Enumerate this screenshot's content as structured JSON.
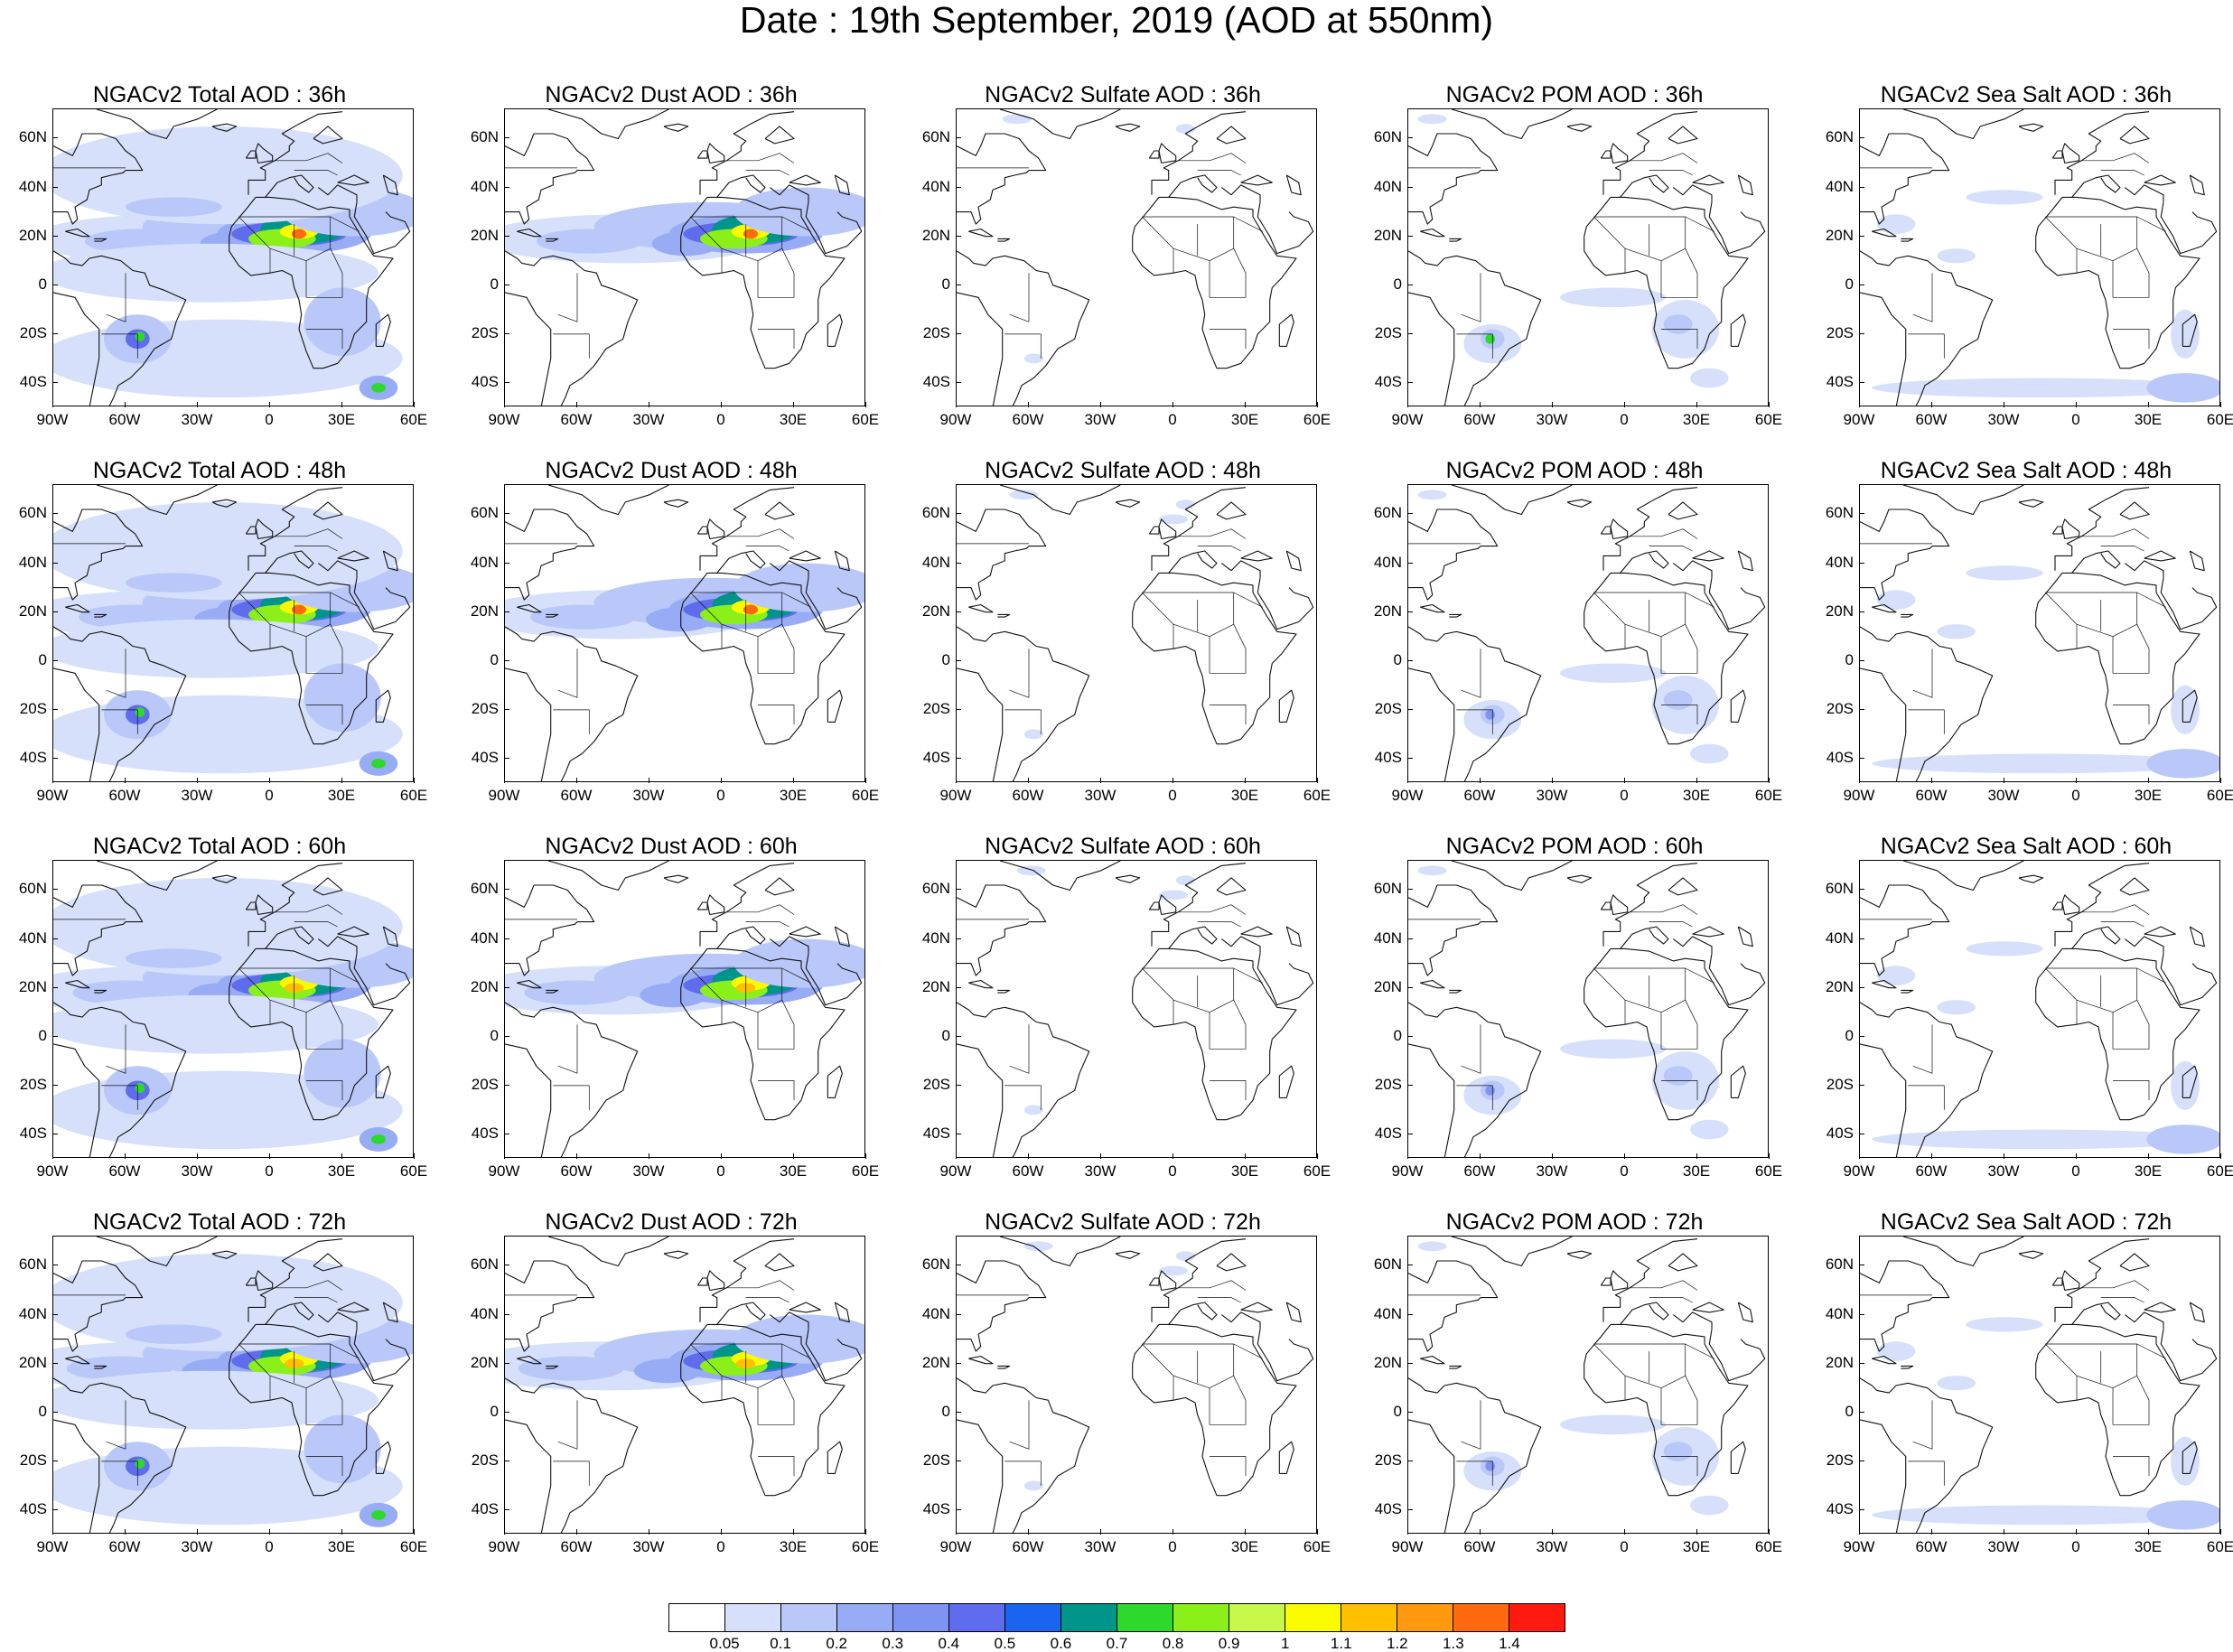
{
  "title": "Date : 19th September, 2019 (AOD at 550nm)",
  "lat_labels": [
    "60N",
    "40N",
    "20N",
    "0",
    "20S",
    "40S"
  ],
  "lon_labels": [
    "90W",
    "60W",
    "30W",
    "0",
    "30E",
    "60E"
  ],
  "rows": [
    {
      "forecast_hour": "36h",
      "panels": [
        {
          "title": "NGACv2 Total AOD : 36h",
          "species": "total"
        },
        {
          "title": "NGACv2 Dust AOD : 36h",
          "species": "dust"
        },
        {
          "title": "NGACv2 Sulfate AOD : 36h",
          "species": "sulfate"
        },
        {
          "title": "NGACv2 POM AOD : 36h",
          "species": "pom"
        },
        {
          "title": "NGACv2 Sea Salt AOD : 36h",
          "species": "seasalt"
        }
      ]
    },
    {
      "forecast_hour": "48h",
      "panels": [
        {
          "title": "NGACv2 Total AOD : 48h",
          "species": "total"
        },
        {
          "title": "NGACv2 Dust AOD : 48h",
          "species": "dust"
        },
        {
          "title": "NGACv2 Sulfate AOD : 48h",
          "species": "sulfate"
        },
        {
          "title": "NGACv2 POM AOD : 48h",
          "species": "pom"
        },
        {
          "title": "NGACv2 Sea Salt AOD : 48h",
          "species": "seasalt"
        }
      ]
    },
    {
      "forecast_hour": "60h",
      "panels": [
        {
          "title": "NGACv2 Total AOD : 60h",
          "species": "total"
        },
        {
          "title": "NGACv2 Dust AOD : 60h",
          "species": "dust"
        },
        {
          "title": "NGACv2 Sulfate AOD : 60h",
          "species": "sulfate"
        },
        {
          "title": "NGACv2 POM AOD : 60h",
          "species": "pom"
        },
        {
          "title": "NGACv2 Sea Salt AOD : 60h",
          "species": "seasalt"
        }
      ]
    },
    {
      "forecast_hour": "72h",
      "panels": [
        {
          "title": "NGACv2 Total AOD : 72h",
          "species": "total"
        },
        {
          "title": "NGACv2 Dust AOD : 72h",
          "species": "dust"
        },
        {
          "title": "NGACv2 Sulfate AOD : 72h",
          "species": "sulfate"
        },
        {
          "title": "NGACv2 POM AOD : 72h",
          "species": "pom"
        },
        {
          "title": "NGACv2 Sea Salt  AOD : 72h",
          "species": "seasalt"
        }
      ]
    }
  ],
  "colorbar": {
    "labels": [
      "0.05",
      "0.1",
      "0.2",
      "0.3",
      "0.4",
      "0.5",
      "0.6",
      "0.7",
      "0.8",
      "0.9",
      "1",
      "1.1",
      "1.2",
      "1.3",
      "1.4"
    ],
    "colors": [
      "#ffffff",
      "#d6e0fb",
      "#b9c8f9",
      "#98acf6",
      "#7f94f2",
      "#5e6ced",
      "#1a64f0",
      "#00958a",
      "#2ed92e",
      "#8bf01a",
      "#c6f74a",
      "#fbfb00",
      "#ffc000",
      "#ff9a10",
      "#ff6a10",
      "#ff1a10"
    ]
  }
}
